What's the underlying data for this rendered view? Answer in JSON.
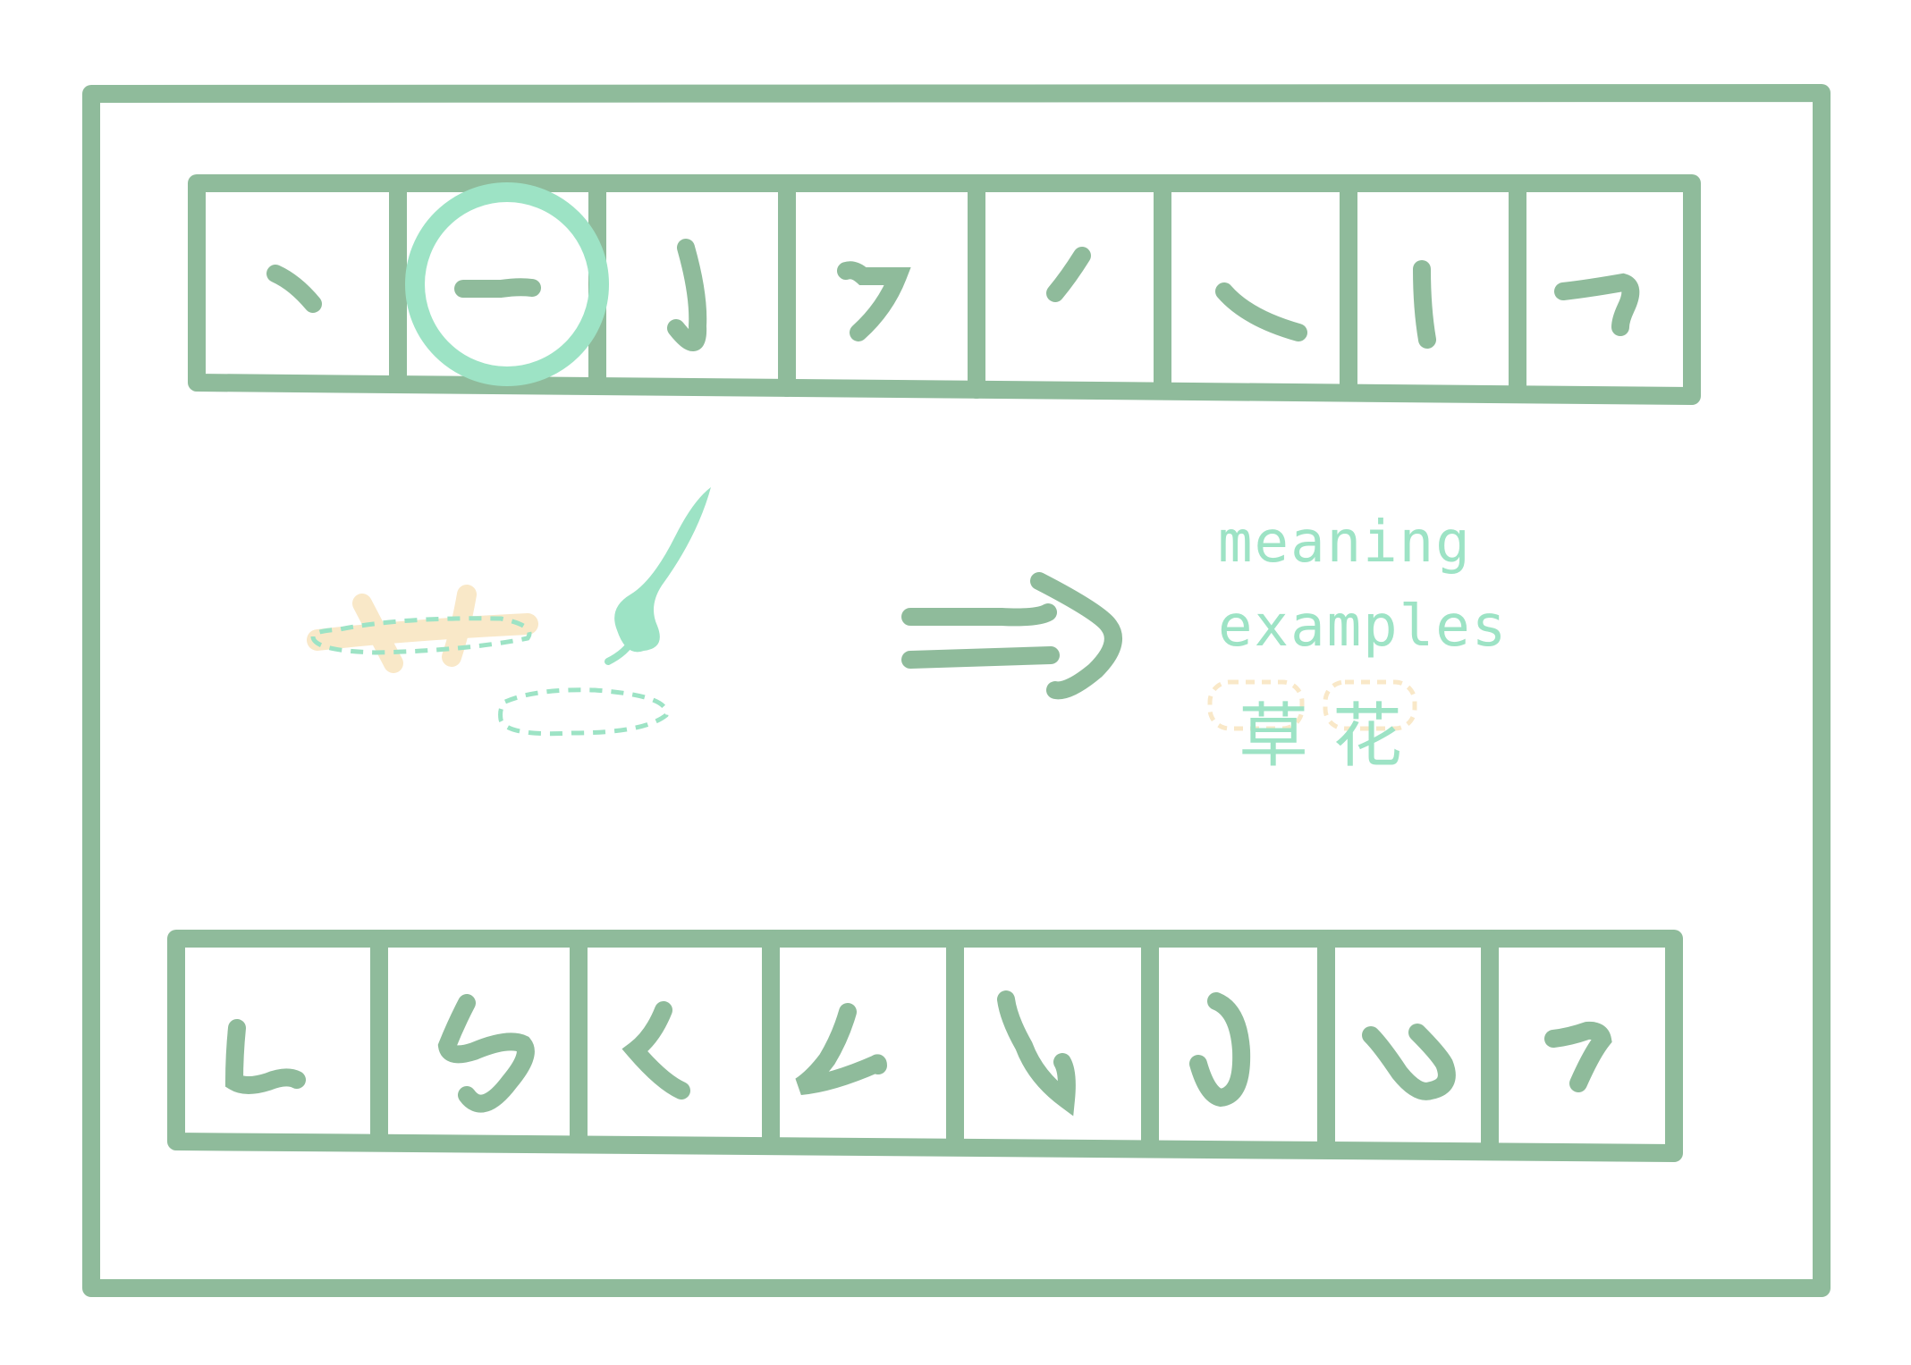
{
  "colors": {
    "frame": "#8fbb9b",
    "accent": "#9de3c5",
    "highlight": "#f9e8c8",
    "background": "#ffffff"
  },
  "top_row": {
    "selected_index": 1,
    "strokes": [
      {
        "name": "dot-stroke",
        "icon": "dian-stroke-icon"
      },
      {
        "name": "horizontal-stroke",
        "icon": "heng-stroke-icon"
      },
      {
        "name": "vertical-hook-stroke",
        "icon": "shugou-stroke-icon"
      },
      {
        "name": "horizontal-left-falling-stroke",
        "icon": "hengpie-stroke-icon"
      },
      {
        "name": "short-left-falling-stroke",
        "icon": "pie-stroke-icon"
      },
      {
        "name": "right-falling-stroke",
        "icon": "na-stroke-icon"
      },
      {
        "name": "vertical-stroke",
        "icon": "shu-stroke-icon"
      },
      {
        "name": "horizontal-turn-stroke",
        "icon": "hengzhe-stroke-icon"
      }
    ]
  },
  "bottom_row": {
    "strokes": [
      {
        "name": "vertical-turn-stroke",
        "icon": "shuzhe-stroke-icon"
      },
      {
        "name": "horizontal-turn-hook-stroke",
        "icon": "hengzhegou-stroke-icon"
      },
      {
        "name": "left-falling-dot-stroke",
        "icon": "piedian-stroke-icon"
      },
      {
        "name": "left-falling-turn-stroke",
        "icon": "piezhe-stroke-icon"
      },
      {
        "name": "vertical-bend-hook-stroke",
        "icon": "shuwangou-stroke-icon"
      },
      {
        "name": "curved-hook-stroke",
        "icon": "wangou-stroke-icon"
      },
      {
        "name": "two-dots-stroke",
        "icon": "diandian-stroke-icon"
      },
      {
        "name": "horizontal-falling-stroke",
        "icon": "hengpie2-stroke-icon"
      }
    ]
  },
  "detail": {
    "labels": {
      "meaning": "meaning",
      "examples": "examples"
    },
    "example_chars": [
      "草",
      "花"
    ],
    "icons": {
      "brush": "brush-icon",
      "arrow": "double-arrow-icon",
      "sample_character": "sample-character-icon"
    }
  }
}
